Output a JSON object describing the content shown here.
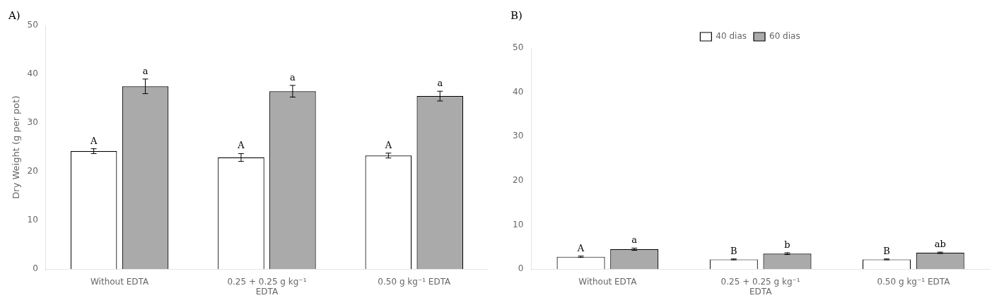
{
  "chart_data": [
    {
      "type": "bar",
      "title": "A)",
      "ylabel": "Dry Weight (g per pot)",
      "categories": [
        "Without EDTA",
        "0.25 + 0.25 g kg⁻¹\nEDTA",
        "0.50 g kg⁻¹ EDTA"
      ],
      "series": [
        {
          "name": "40 dias",
          "color": "#ffffff",
          "values": [
            24.2,
            22.9,
            23.3
          ],
          "errors": [
            0.5,
            0.8,
            0.5
          ],
          "labels": [
            "A",
            "A",
            "A"
          ]
        },
        {
          "name": "60 dias",
          "color": "#aaaaaa",
          "values": [
            37.5,
            36.5,
            35.5
          ],
          "errors": [
            1.5,
            1.2,
            1.0
          ],
          "labels": [
            "a",
            "a",
            "a"
          ]
        }
      ],
      "ylim": [
        0,
        50
      ],
      "yticks": [
        0,
        10,
        20,
        30,
        40,
        50
      ],
      "grid": false
    },
    {
      "type": "bar",
      "title": "B)",
      "categories": [
        "Without EDTA",
        "0.25 + 0.25 g kg⁻¹\nEDTA",
        "0.50 g kg⁻¹ EDTA"
      ],
      "series": [
        {
          "name": "40 dias",
          "color": "#ffffff",
          "values": [
            2.8,
            2.2,
            2.2
          ],
          "errors": [
            0.15,
            0.1,
            0.1
          ],
          "labels": [
            "A",
            "B",
            "B"
          ]
        },
        {
          "name": "60 dias",
          "color": "#aaaaaa",
          "values": [
            4.5,
            3.5,
            3.7
          ],
          "errors": [
            0.25,
            0.2,
            0.15
          ],
          "labels": [
            "a",
            "b",
            "ab"
          ]
        }
      ],
      "ylim": [
        0,
        50
      ],
      "yticks": [
        0,
        10,
        20,
        30,
        40,
        50
      ],
      "grid": false,
      "legend": "top"
    }
  ]
}
